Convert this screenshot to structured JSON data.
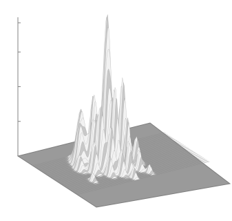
{
  "chart_data": {
    "type": "surface",
    "title": "",
    "xlabel": "",
    "ylabel": "",
    "zlabel": "",
    "z_axis": {
      "tick_labels": [],
      "tick_count": 4
    },
    "grid": false,
    "legend": "none",
    "colors": {
      "floor": "#9a9a9a",
      "floor_edge": "#7e7e7e",
      "surface_light": "#f2f2f2",
      "surface_mid": "#c8c8c8",
      "surface_dark": "#8c8c8c",
      "axis": "#808080"
    },
    "peaks": [
      {
        "x": 0.45,
        "y": 0.38,
        "height": 1.0,
        "width": 0.018
      },
      {
        "x": 0.52,
        "y": 0.46,
        "height": 0.6,
        "width": 0.016
      },
      {
        "x": 0.39,
        "y": 0.31,
        "height": 0.46,
        "width": 0.018
      },
      {
        "x": 0.35,
        "y": 0.47,
        "height": 0.42,
        "width": 0.015
      },
      {
        "x": 0.3,
        "y": 0.3,
        "height": 0.36,
        "width": 0.02
      },
      {
        "x": 0.26,
        "y": 0.35,
        "height": 0.26,
        "width": 0.018
      },
      {
        "x": 0.44,
        "y": 0.5,
        "height": 0.55,
        "width": 0.014
      },
      {
        "x": 0.48,
        "y": 0.3,
        "height": 0.4,
        "width": 0.016
      },
      {
        "x": 0.33,
        "y": 0.4,
        "height": 0.3,
        "width": 0.016
      },
      {
        "x": 0.42,
        "y": 0.42,
        "height": 0.5,
        "width": 0.015
      },
      {
        "x": 0.56,
        "y": 0.4,
        "height": 0.3,
        "width": 0.014
      },
      {
        "x": 0.38,
        "y": 0.55,
        "height": 0.32,
        "width": 0.014
      },
      {
        "x": 0.5,
        "y": 0.56,
        "height": 0.35,
        "width": 0.013
      },
      {
        "x": 0.6,
        "y": 0.5,
        "height": 0.18,
        "width": 0.014
      },
      {
        "x": 0.28,
        "y": 0.5,
        "height": 0.22,
        "width": 0.014
      },
      {
        "x": 0.47,
        "y": 0.62,
        "height": 0.22,
        "width": 0.012
      },
      {
        "x": 0.41,
        "y": 0.63,
        "height": 0.18,
        "width": 0.012
      },
      {
        "x": 0.55,
        "y": 0.62,
        "height": 0.14,
        "width": 0.012
      },
      {
        "x": 0.34,
        "y": 0.6,
        "height": 0.14,
        "width": 0.012
      },
      {
        "x": 0.22,
        "y": 0.42,
        "height": 0.1,
        "width": 0.014
      },
      {
        "x": 0.63,
        "y": 0.36,
        "height": 0.1,
        "width": 0.014
      },
      {
        "x": 0.2,
        "y": 0.62,
        "height": 0.06,
        "width": 0.01
      },
      {
        "x": 0.58,
        "y": 0.7,
        "height": 0.06,
        "width": 0.01
      },
      {
        "x": 0.45,
        "y": 0.72,
        "height": 0.08,
        "width": 0.01
      }
    ]
  }
}
